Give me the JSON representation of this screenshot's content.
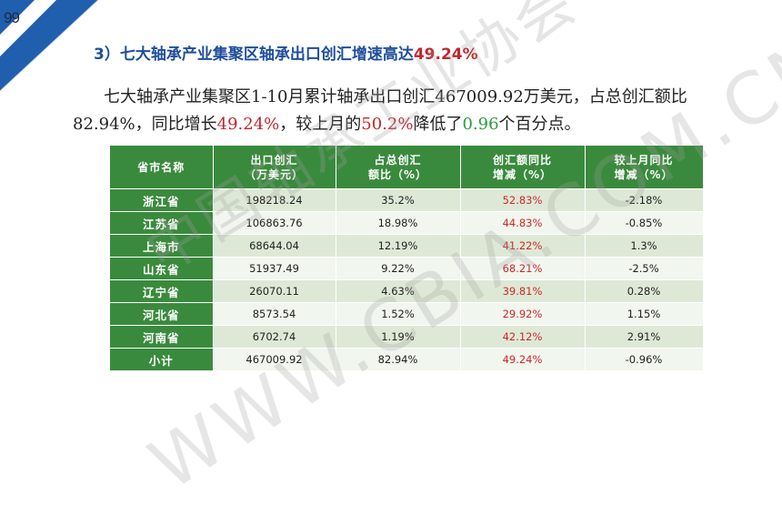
{
  "page_number": "99",
  "heading": {
    "prefix": "3）七大轴承产业集聚区轴承出口创汇增速高达",
    "value": "49.24%"
  },
  "paragraph": {
    "line1": "七大轴承产业集聚区1-10月累计轴承出口创汇467009.92万美元，占总创汇额比",
    "line2_a": "82.94%，同比增长",
    "line2_b": "49.24%",
    "line2_c": "，较上月的",
    "line2_d": "50.2%",
    "line2_e": "降低了",
    "line2_f": "0.96",
    "line2_g": "个百分点。"
  },
  "table": {
    "headers": [
      [
        "省市名称",
        ""
      ],
      [
        "出口创汇",
        "（万美元）"
      ],
      [
        "占总创汇",
        "额比（%）"
      ],
      [
        "创汇额同比",
        "增减（%）"
      ],
      [
        "较上月同比",
        "增减（%）"
      ]
    ],
    "rows": [
      {
        "name": "浙江省",
        "export": "198218.24",
        "share": "35.2%",
        "yoy": "52.83%",
        "mom": "-2.18%"
      },
      {
        "name": "江苏省",
        "export": "106863.76",
        "share": "18.98%",
        "yoy": "44.83%",
        "mom": "-0.85%"
      },
      {
        "name": "上海市",
        "export": "68644.04",
        "share": "12.19%",
        "yoy": "41.22%",
        "mom": "1.3%"
      },
      {
        "name": "山东省",
        "export": "51937.49",
        "share": "9.22%",
        "yoy": "68.21%",
        "mom": "-2.5%"
      },
      {
        "name": "辽宁省",
        "export": "26070.11",
        "share": "4.63%",
        "yoy": "39.81%",
        "mom": "0.28%"
      },
      {
        "name": "河北省",
        "export": "8573.54",
        "share": "1.52%",
        "yoy": "29.92%",
        "mom": "1.15%"
      },
      {
        "name": "河南省",
        "export": "6702.74",
        "share": "1.19%",
        "yoy": "42.12%",
        "mom": "2.91%"
      },
      {
        "name": "小计",
        "export": "467009.92",
        "share": "82.94%",
        "yoy": "49.24%",
        "mom": "-0.96%"
      }
    ]
  },
  "watermark": {
    "text1": "中国轴承工业协会",
    "text2": "WWW.CBIA.COM.CN"
  },
  "colors": {
    "corner_blue": "#1f5fae",
    "header_green": "#3a8a3d",
    "accent_red": "#c0272d",
    "accent_green": "#2a9d3f"
  }
}
